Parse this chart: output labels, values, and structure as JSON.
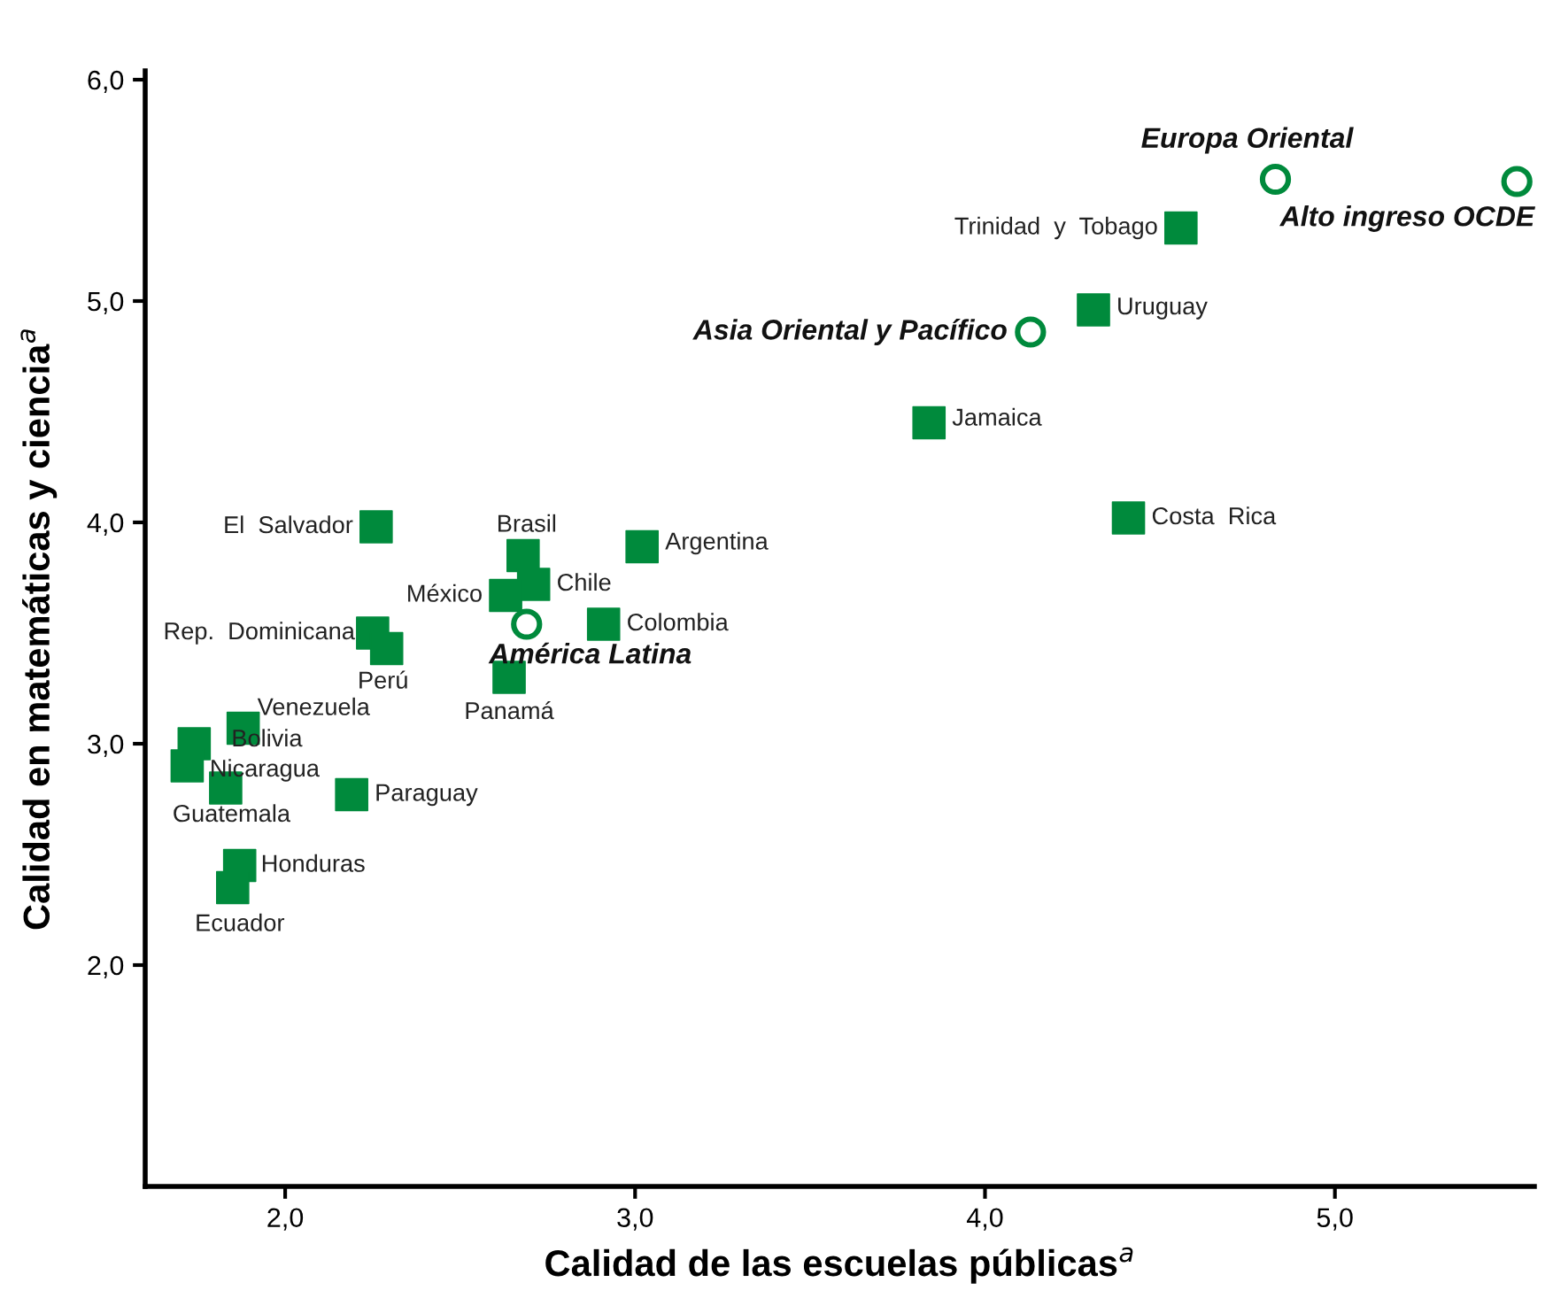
{
  "chart_data": {
    "type": "scatter",
    "xlabel": "Calidad de las escuelas públicas$^{a}$",
    "ylabel": "Calidad en matemáticas y ciencia$^{a}$",
    "xlim": [
      1.6,
      5.57
    ],
    "ylim": [
      1.0,
      6.04
    ],
    "xticks": [
      {
        "value": 2,
        "label": "2,0"
      },
      {
        "value": 3,
        "label": "3,0"
      },
      {
        "value": 4,
        "label": "4,0"
      },
      {
        "value": 5,
        "label": "5,0"
      }
    ],
    "yticks": [
      {
        "value": 2,
        "label": "2,0"
      },
      {
        "value": 3,
        "label": "3,0"
      },
      {
        "value": 4,
        "label": "4,0"
      },
      {
        "value": 5,
        "label": "5,0"
      },
      {
        "value": 6,
        "label": "6,0"
      }
    ],
    "grid": false,
    "legend": false,
    "series": [
      {
        "color": "#008a3c",
        "marker": "square",
        "x": [
          2.26,
          2.68,
          2.71,
          2.63,
          3.02,
          2.91,
          2.25,
          2.29,
          2.64,
          1.88,
          1.74,
          1.72,
          1.83,
          2.19,
          1.87,
          1.85,
          3.84,
          4.31,
          4.56,
          4.41
        ],
        "values": [
          3.98,
          3.85,
          3.72,
          3.67,
          3.89,
          3.54,
          3.5,
          3.43,
          3.3,
          3.07,
          3.0,
          2.9,
          2.8,
          2.77,
          2.45,
          2.35,
          4.45,
          4.96,
          5.33,
          4.02
        ]
      },
      {
        "color": "#008a3c",
        "marker": "circle",
        "x": [
          2.69,
          4.13,
          4.83,
          5.52
        ],
        "values": [
          3.54,
          4.86,
          5.55,
          5.54
        ]
      }
    ],
    "annotations": [
      {
        "text": "El  Salvador",
        "x": 2.26,
        "y": 3.98
      },
      {
        "text": "Brasil",
        "x": 2.68,
        "y": 3.85
      },
      {
        "text": "Chile",
        "x": 2.71,
        "y": 3.72
      },
      {
        "text": "México",
        "x": 2.63,
        "y": 3.67
      },
      {
        "text": "Argentina",
        "x": 3.02,
        "y": 3.89
      },
      {
        "text": "Colombia",
        "x": 2.91,
        "y": 3.54
      },
      {
        "text": "Rep.  Dominicana",
        "x": 2.25,
        "y": 3.5
      },
      {
        "text": "Perú",
        "x": 2.29,
        "y": 3.43
      },
      {
        "text": "Panamá",
        "x": 2.64,
        "y": 3.3
      },
      {
        "text": "Venezuela",
        "x": 1.88,
        "y": 3.07
      },
      {
        "text": "Bolivia",
        "x": 1.74,
        "y": 3.0
      },
      {
        "text": "Guatemala",
        "x": 1.72,
        "y": 2.9
      },
      {
        "text": "Nicaragua",
        "x": 1.83,
        "y": 2.8
      },
      {
        "text": "Paraguay",
        "x": 2.19,
        "y": 2.77
      },
      {
        "text": "Honduras",
        "x": 1.87,
        "y": 2.45
      },
      {
        "text": "Ecuador",
        "x": 1.85,
        "y": 2.35
      },
      {
        "text": "Jamaica",
        "x": 3.84,
        "y": 4.45
      },
      {
        "text": "Uruguay",
        "x": 4.31,
        "y": 4.96
      },
      {
        "text": "Trinidad  y  Tobago",
        "x": 4.56,
        "y": 5.33
      },
      {
        "text": "Costa  Rica",
        "x": 4.41,
        "y": 4.02
      },
      {
        "text": "América Latina",
        "x": 2.69,
        "y": 3.54
      },
      {
        "text": "Asia Oriental y Pacífico",
        "x": 4.13,
        "y": 4.86
      },
      {
        "text": "Europa Oriental",
        "x": 4.83,
        "y": 5.55
      },
      {
        "text": "Alto ingreso OCDE",
        "x": 5.52,
        "y": 5.54
      }
    ]
  }
}
